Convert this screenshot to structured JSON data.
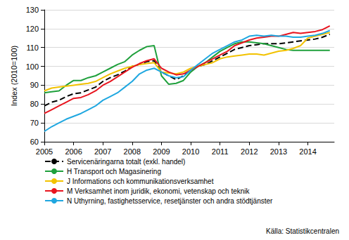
{
  "chart_data": {
    "type": "line",
    "y_label": "Index (2010=100)",
    "annotations": [
      "Källa: Statistikcentralen"
    ],
    "x": [
      2005,
      2005.25,
      2005.5,
      2005.75,
      2006,
      2006.25,
      2006.5,
      2006.75,
      2007,
      2007.25,
      2007.5,
      2007.75,
      2008,
      2008.25,
      2008.5,
      2008.75,
      2009,
      2009.25,
      2009.5,
      2009.75,
      2010,
      2010.25,
      2010.5,
      2010.75,
      2011,
      2011.25,
      2011.5,
      2011.75,
      2012,
      2012.25,
      2012.5,
      2012.75,
      2013,
      2013.25,
      2013.5,
      2013.75,
      2014,
      2014.25,
      2014.5,
      2014.75
    ],
    "xlim": [
      2005,
      2014.9
    ],
    "xticks": [
      2005,
      2006,
      2007,
      2008,
      2009,
      2010,
      2011,
      2012,
      2013,
      2014
    ],
    "ylim": [
      60,
      130
    ],
    "yticks": [
      60,
      70,
      80,
      90,
      100,
      110,
      120,
      130
    ],
    "grid": true,
    "legend": "bottom",
    "marker": "none",
    "series": [
      {
        "name": "Servicenäringarna totalt (exkl. handel)",
        "color": "#000000",
        "line_style": "dashed",
        "values": [
          79,
          81,
          82,
          84,
          85.5,
          86,
          87.5,
          89,
          92,
          94,
          95.5,
          97.5,
          100,
          101,
          102.5,
          103,
          97,
          95,
          93,
          95,
          98,
          100,
          101,
          103,
          105,
          107,
          109,
          110,
          111,
          111.5,
          112,
          112,
          112,
          112.5,
          113,
          113.5,
          114,
          114.5,
          115.5,
          117
        ]
      },
      {
        "name": "H Transport och Magasinering",
        "color": "#1fa03c",
        "line_style": "solid",
        "values": [
          86,
          86.5,
          87,
          90,
          92.5,
          92.5,
          94,
          95,
          97,
          99,
          101,
          102.5,
          106,
          108.5,
          110.5,
          111,
          95,
          90.5,
          91,
          92.5,
          97,
          100,
          102,
          105,
          108,
          110,
          112,
          113,
          113,
          112.5,
          112,
          111,
          110,
          109,
          108.5,
          108.5,
          108.5,
          108.5,
          108.5,
          108.5
        ]
      },
      {
        "name": "J Informations och kommunikationsverksamhet",
        "color": "#f2c200",
        "line_style": "solid",
        "values": [
          87,
          88.5,
          89,
          89.5,
          90,
          90.5,
          91,
          92,
          94,
          96,
          97.5,
          99,
          100,
          101,
          101.5,
          102,
          97,
          96.5,
          96,
          97,
          99,
          100,
          101,
          102,
          104,
          105,
          105.5,
          106,
          106.5,
          106.5,
          106,
          107,
          108,
          108.5,
          109.5,
          111,
          115,
          116,
          117,
          118
        ]
      },
      {
        "name": "M Verksamhet inom juridik, ekonomi, vetenskap och teknik",
        "color": "#e8141e",
        "line_style": "solid",
        "values": [
          75,
          77,
          79,
          81,
          83,
          83.5,
          85,
          87,
          90,
          92,
          94.5,
          97,
          99.5,
          101.5,
          103,
          104,
          99,
          97,
          95.5,
          96,
          98,
          100,
          102,
          104,
          106,
          108,
          111,
          112.5,
          114,
          115,
          115.5,
          116,
          116,
          117,
          118,
          117.5,
          118,
          118.5,
          119.5,
          121.5
        ]
      },
      {
        "name": "N Uthyrning, fastighetsservice, resetjänster och andra stödtjänster",
        "color": "#1fa7e0",
        "line_style": "solid",
        "values": [
          65.5,
          68,
          70,
          72,
          73.5,
          75,
          77,
          79,
          82,
          84,
          86,
          89,
          92,
          96,
          98,
          99,
          97,
          95,
          94,
          94.5,
          98,
          101,
          104,
          107,
          109,
          111,
          113,
          114,
          116,
          116.5,
          116,
          116.5,
          116,
          116,
          115.5,
          115.5,
          116,
          116.5,
          117.5,
          119
        ]
      }
    ]
  }
}
